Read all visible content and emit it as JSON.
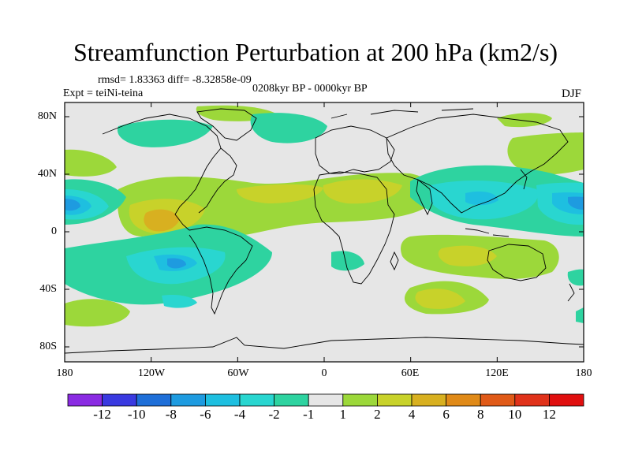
{
  "title": "Streamfunction Perturbation at 200 hPa (km2/s)",
  "stats_line": "rmsd= 1.83363 diff= -8.32858e-09",
  "expt_line": "Expt = teiNi-teina",
  "period_line": "0208kyr BP - 0000kyr BP",
  "season": "DJF",
  "lat_labels": [
    "80N",
    "40N",
    "0",
    "40S",
    "80S"
  ],
  "lon_labels": [
    "180",
    "120W",
    "60W",
    "0",
    "60E",
    "120E",
    "180"
  ],
  "colorbar": {
    "labels": [
      "-12",
      "-10",
      "-8",
      "-6",
      "-4",
      "-2",
      "-1",
      "1",
      "2",
      "4",
      "6",
      "8",
      "10",
      "12"
    ],
    "colors": [
      "#8a2be2",
      "#3a3ae0",
      "#1f6fd8",
      "#1e9be0",
      "#1ebfe0",
      "#29d6d0",
      "#2ed3a0",
      "#e6e6e6",
      "#9cd83a",
      "#c8d22a",
      "#d8b020",
      "#e08a18",
      "#e05a18",
      "#e0321a",
      "#e00f0f"
    ]
  },
  "colors": {
    "neutral": "#e6e6e6",
    "coast": "#000000"
  },
  "map_data": {
    "projection": "cylindrical equidistant",
    "lon_range": [
      -180,
      180
    ],
    "lat_range": [
      -90,
      90
    ],
    "field": "streamfunction perturbation",
    "units": "km2/s",
    "level": "200 hPa"
  }
}
